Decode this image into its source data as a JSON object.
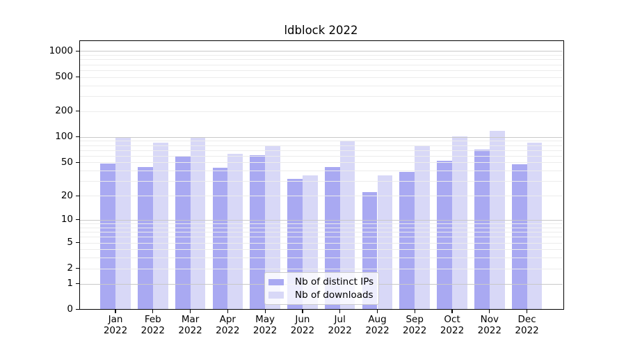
{
  "title": "ldblock 2022",
  "chart_data": {
    "type": "bar",
    "title": "ldblock 2022",
    "categories": [
      "Jan",
      "Feb",
      "Mar",
      "Apr",
      "May",
      "Jun",
      "Jul",
      "Aug",
      "Sep",
      "Oct",
      "Nov",
      "Dec"
    ],
    "year_label": "2022",
    "series": [
      {
        "name": "Nb of distinct IPs",
        "color": "#a9a9f2",
        "values": [
          49,
          44,
          60,
          43,
          61,
          32,
          44,
          22,
          39,
          52,
          71,
          48
        ]
      },
      {
        "name": "Nb of downloads",
        "color": "#d8d8f7",
        "values": [
          99,
          86,
          100,
          63,
          80,
          35,
          91,
          35,
          80,
          101,
          118,
          86
        ]
      }
    ],
    "yscale": "log1p",
    "yticks": [
      1000,
      500,
      200,
      100,
      50,
      20,
      10,
      5,
      2,
      1,
      0
    ],
    "grid_major_values": [
      1,
      10,
      100,
      1000
    ],
    "grid_minor_values": [
      2,
      3,
      4,
      5,
      6,
      7,
      8,
      9,
      20,
      30,
      40,
      50,
      60,
      70,
      80,
      90,
      200,
      300,
      400,
      500,
      600,
      700,
      800,
      900
    ],
    "ylim": [
      0,
      1350
    ],
    "grid": "horizontal",
    "legend_position": "inside-bottom-center"
  },
  "colors": {
    "distinct_ips_bar": "#a9a9f2",
    "downloads_bar": "#d8d8f7",
    "grid_major": "#c9c9c9",
    "grid_minor": "#ececec",
    "axis": "#000000",
    "legend_border": "#cccccc",
    "background": "#ffffff"
  }
}
